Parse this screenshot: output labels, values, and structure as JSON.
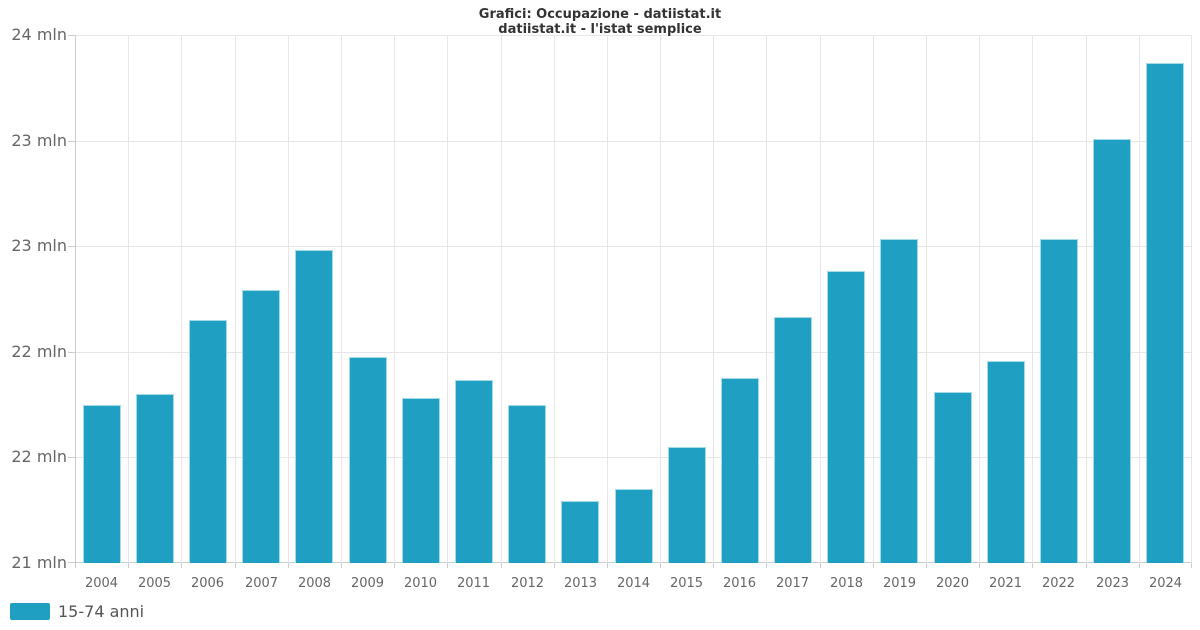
{
  "chart_data": {
    "type": "bar",
    "title": "Grafici: Occupazione - datiistat.it",
    "subtitle": "datiistat.it - l'istat semplice",
    "categories": [
      "2004",
      "2005",
      "2006",
      "2007",
      "2008",
      "2009",
      "2010",
      "2011",
      "2012",
      "2013",
      "2014",
      "2015",
      "2016",
      "2017",
      "2018",
      "2019",
      "2020",
      "2021",
      "2022",
      "2023",
      "2024"
    ],
    "series": [
      {
        "name": "15-74 anni",
        "color": "#1fa0c3",
        "values": [
          21.9,
          21.96,
          22.38,
          22.55,
          22.78,
          22.17,
          21.94,
          22.04,
          21.9,
          21.35,
          21.42,
          21.66,
          22.05,
          22.4,
          22.66,
          22.84,
          21.97,
          22.15,
          22.84,
          23.41,
          23.84
        ]
      }
    ],
    "unit": "mln",
    "xlabel": "",
    "ylabel": "",
    "ylim": [
      21,
      24
    ],
    "ytick_interval": 0.6,
    "ytick_labels_top_to_bottom": [
      "24 mln",
      "23 mln",
      "23 mln",
      "22 mln",
      "22 mln",
      "21 mln"
    ],
    "grid": true,
    "legend_position": "bottom-left"
  },
  "colors": {
    "bar_fill": "#1fa0c3",
    "bar_border": "#a5dbe9",
    "grid_line": "#e6e6e6",
    "axis_line": "#cccccc",
    "title_text": "#333333",
    "axis_text": "#666666",
    "legend_text": "#555555",
    "background": "#ffffff"
  }
}
